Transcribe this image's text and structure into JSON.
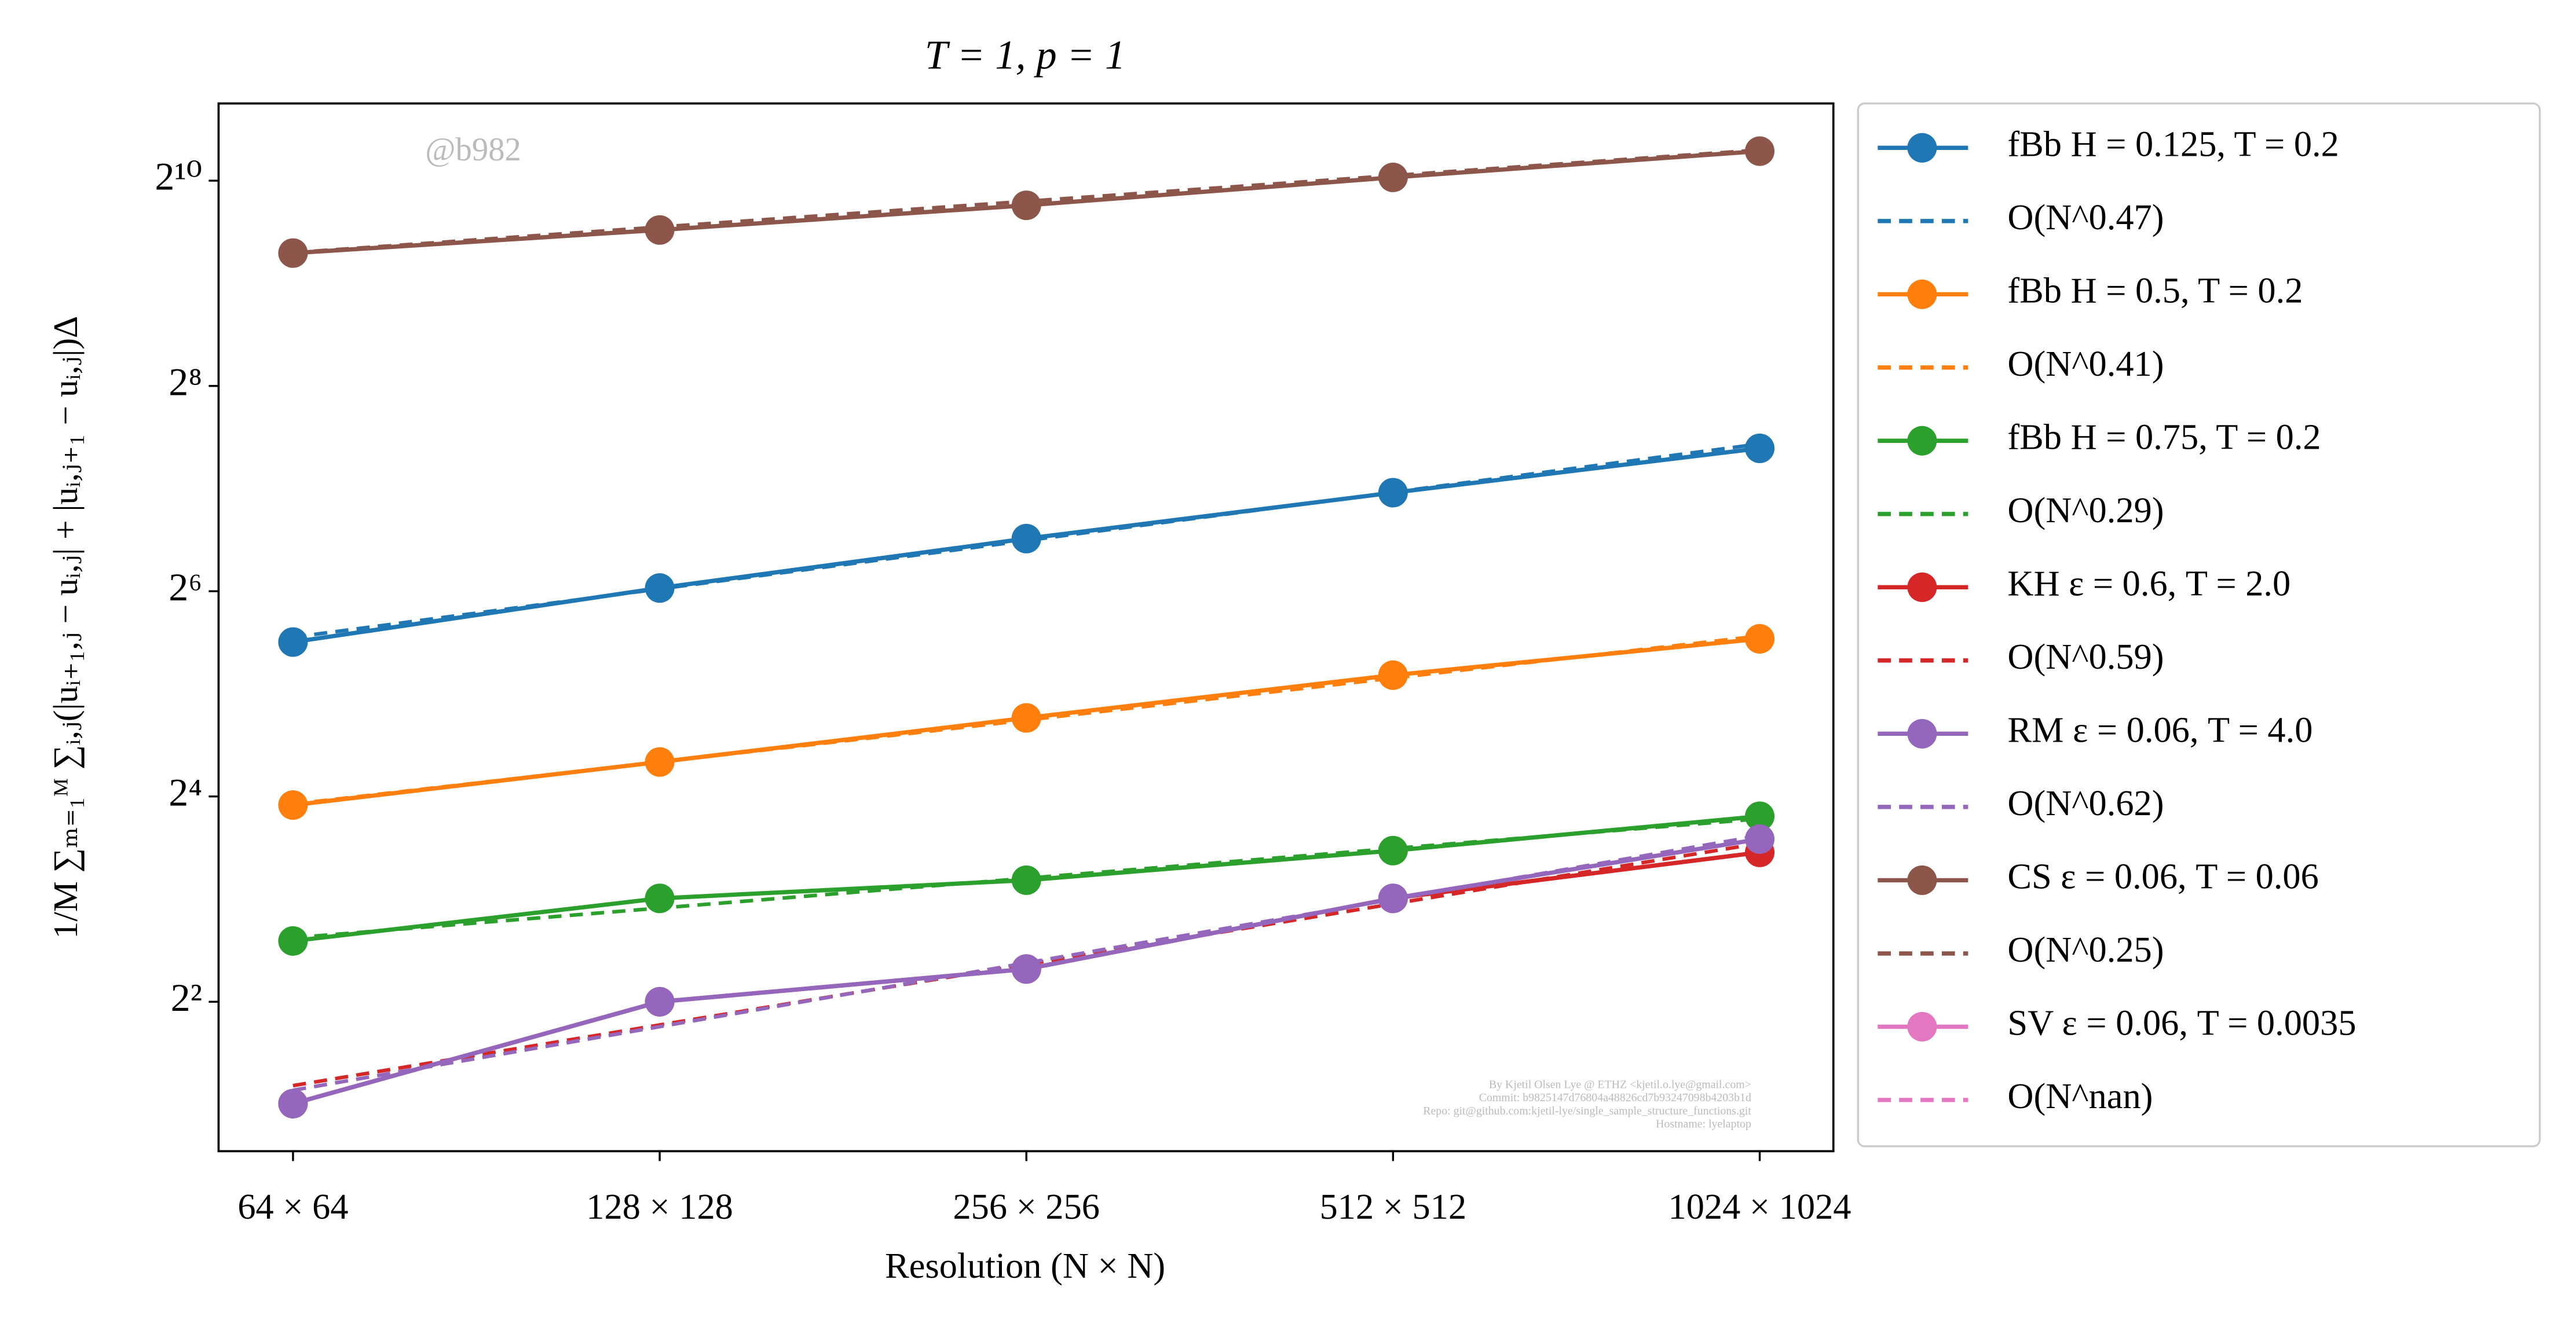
{
  "chart_data": {
    "type": "line",
    "title": "T = 1, p = 1",
    "x_label": "Resolution (N × N)",
    "y_label": "1/M ∑ₘ₌₁ᴹ ∑ᵢ,ⱼ(|uᵢ₊₁,ⱼ − uᵢ,ⱼ| + |uᵢ,ⱼ₊₁ − uᵢ,ⱼ|)Δ",
    "annotations": [
      "@b982",
      "By Kjetil Olsen Lye @ ETHZ <kjetil.o.lye@gmail.com>",
      "Commit: b9825147d76804a48826cd7b93247098b4203b1d",
      "Repo: git@github.com:kjetil-lye/single_sample_structure_functions.git",
      "Hostname: lyelaptop"
    ],
    "x": [
      64,
      128,
      256,
      512,
      1024
    ],
    "xscale": "log2",
    "yscale": "log2",
    "xlim": [
      55.6,
      1177
    ],
    "ylim": [
      1.458,
      1725
    ],
    "xticks": [
      {
        "value": 64,
        "label": "64 × 64"
      },
      {
        "value": 128,
        "label": "128 × 128"
      },
      {
        "value": 256,
        "label": "256 × 256"
      },
      {
        "value": 512,
        "label": "512 × 512"
      },
      {
        "value": 1024,
        "label": "1024 × 1024"
      }
    ],
    "yticks": [
      {
        "value": 4,
        "label": "2²"
      },
      {
        "value": 16,
        "label": "2⁴"
      },
      {
        "value": 64,
        "label": "2⁶"
      },
      {
        "value": 256,
        "label": "2⁸"
      },
      {
        "value": 1024,
        "label": "2¹⁰"
      }
    ],
    "grid": false,
    "legend": "outside-right",
    "series": [
      {
        "name": "fBb H = 0.125, T = 0.2",
        "color": "#1f77b4",
        "linestyle": "solid",
        "values": [
          45.4,
          65.4,
          91.3,
          124.5,
          168
        ]
      },
      {
        "name": "O(N^0.47)",
        "color": "#1f77b4",
        "linestyle": "dashed",
        "values": [
          46.9,
          65.0,
          90.1,
          124.9,
          173
        ]
      },
      {
        "name": "fBb H = 0.5, T = 0.2",
        "color": "#ff7f0e",
        "linestyle": "solid",
        "values": [
          15.1,
          20.2,
          27.2,
          36.3,
          46.4
        ]
      },
      {
        "name": "O(N^0.41)",
        "color": "#ff7f0e",
        "linestyle": "dashed",
        "values": [
          15.2,
          20.2,
          26.8,
          35.6,
          47.3
        ]
      },
      {
        "name": "fBb H = 0.75, T = 0.2",
        "color": "#2ca02c",
        "linestyle": "solid",
        "values": [
          6.03,
          8.04,
          9.09,
          11.1,
          14.0
        ]
      },
      {
        "name": "O(N^0.29)",
        "color": "#2ca02c",
        "linestyle": "dashed",
        "values": [
          6.16,
          7.53,
          9.21,
          11.26,
          13.76
        ]
      },
      {
        "name": "KH ε = 0.6, T = 2.0",
        "color": "#d62728",
        "linestyle": "solid",
        "values": [
          2.01,
          4.0,
          4.99,
          8.04,
          10.97
        ]
      },
      {
        "name": "O(N^0.59)",
        "color": "#d62728",
        "linestyle": "dashed",
        "values": [
          2.27,
          3.42,
          5.15,
          7.75,
          11.66
        ]
      },
      {
        "name": "RM ε = 0.06, T = 4.0",
        "color": "#9467bd",
        "linestyle": "solid",
        "values": [
          2.01,
          4.0,
          4.99,
          8.04,
          12.0
        ]
      },
      {
        "name": "O(N^0.62)",
        "color": "#9467bd",
        "linestyle": "dashed",
        "values": [
          2.2,
          3.38,
          5.2,
          7.99,
          12.28
        ]
      },
      {
        "name": "CS ε = 0.06, T = 0.06",
        "color": "#8c564b",
        "linestyle": "solid",
        "values": [
          628,
          734,
          867,
          1047,
          1250
        ]
      },
      {
        "name": "O(N^0.25)",
        "color": "#8c564b",
        "linestyle": "dashed",
        "values": [
          630,
          749,
          891,
          1060,
          1260
        ]
      },
      {
        "name": "SV ε = 0.06, T = 0.0035",
        "color": "#e377c2",
        "linestyle": "solid",
        "values": [
          null,
          null,
          null,
          null,
          null
        ]
      },
      {
        "name": "O(N^nan)",
        "color": "#e377c2",
        "linestyle": "dashed",
        "values": [
          null,
          null,
          null,
          null,
          null
        ]
      }
    ]
  }
}
